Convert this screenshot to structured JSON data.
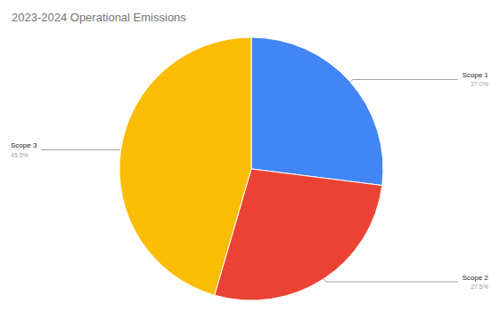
{
  "chart_data": {
    "type": "pie",
    "title": "2023-2024 Operational Emissions",
    "categories": [
      "Scope 1",
      "Scope 2",
      "Scope 3"
    ],
    "values": [
      27,
      27.5,
      45.5
    ],
    "value_labels": [
      "27.0%",
      "27.5%",
      "45.5%"
    ],
    "colors": [
      "#4285f4",
      "#ea4335",
      "#fbbc04"
    ],
    "data_labels": true
  }
}
